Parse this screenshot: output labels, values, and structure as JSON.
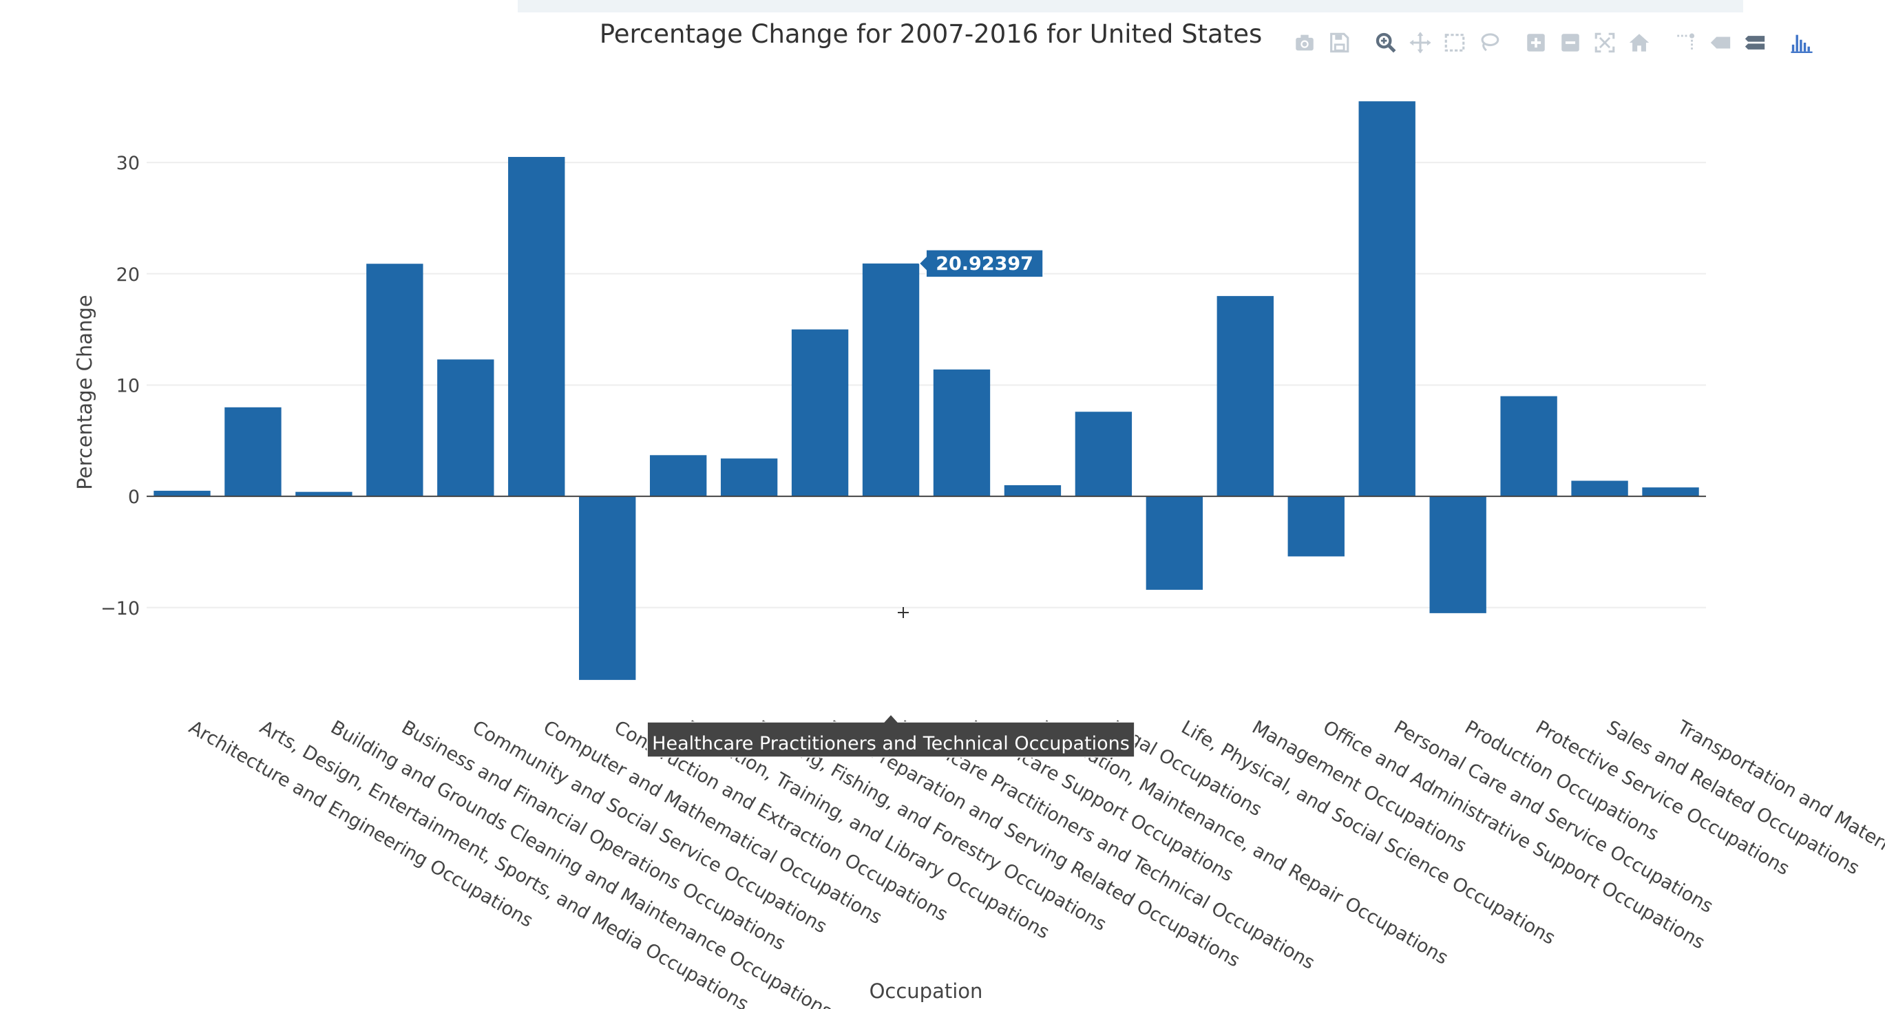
{
  "chart_data": {
    "type": "bar",
    "title": "Percentage Change for 2007-2016 for United States",
    "xlabel": "Occupation",
    "ylabel": "Percentage Change",
    "ylim": [
      -19.6,
      37.8
    ],
    "yticks": [
      -10,
      0,
      10,
      20,
      30
    ],
    "ytick_labels": [
      "−10",
      "0",
      "10",
      "20",
      "30"
    ],
    "grid": true,
    "bar_color": "#1f68a8",
    "categories": [
      "Architecture and Engineering Occupations",
      "Arts, Design, Entertainment, Sports, and Media Occupations",
      "Building and Grounds Cleaning and Maintenance Occupations",
      "Business and Financial Operations Occupations",
      "Community and Social Service Occupations",
      "Computer and Mathematical Occupations",
      "Construction and Extraction Occupations",
      "Education, Training, and Library Occupations",
      "Farming, Fishing, and Forestry Occupations",
      "Food Preparation and Serving Related Occupations",
      "Healthcare Practitioners and Technical Occupations",
      "Healthcare Support Occupations",
      "Installation, Maintenance, and Repair Occupations",
      "Legal Occupations",
      "Life, Physical, and Social Science Occupations",
      "Management Occupations",
      "Office and Administrative Support Occupations",
      "Personal Care and Service Occupations",
      "Production Occupations",
      "Protective Service Occupations",
      "Sales and Related Occupations",
      "Transportation and Material Moving Occupations"
    ],
    "values": [
      0.5,
      8.0,
      0.4,
      20.9,
      12.3,
      30.5,
      -16.5,
      3.7,
      3.4,
      15.0,
      20.92397,
      11.4,
      1.0,
      7.6,
      -8.4,
      18.0,
      -5.4,
      35.5,
      -10.5,
      9.0,
      1.4,
      0.8
    ],
    "hover": {
      "category": "Healthcare Practitioners and Technical Occupations",
      "value_label": "20.92397"
    }
  },
  "modebar": [
    "camera-icon",
    "save-icon",
    "zoom-icon",
    "pan-icon",
    "box-select-icon",
    "lasso-icon",
    "zoom-in-icon",
    "zoom-out-icon",
    "autoscale-icon",
    "reset-axes-icon",
    "spike-lines-icon",
    "hover-closest-icon",
    "hover-compare-icon",
    "plotly-logo-icon"
  ]
}
